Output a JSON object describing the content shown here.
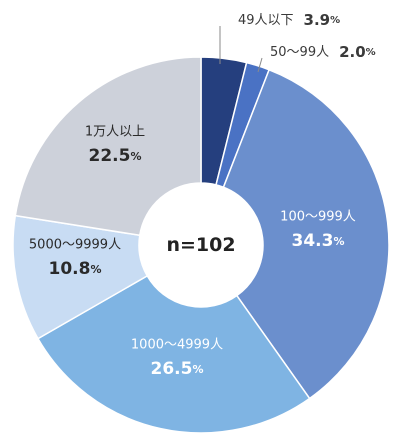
{
  "chart_data": {
    "type": "pie",
    "variant": "donut",
    "center_label": "n=102",
    "value_unit": "%",
    "segments": [
      {
        "label": "49人以下",
        "value": 3.9,
        "color": "#253f7e",
        "label_color": "#3a3a3a",
        "label_mode": "outside"
      },
      {
        "label": "50～99人",
        "value": 2.0,
        "color": "#4a72c4",
        "label_color": "#3a3a3a",
        "label_mode": "outside"
      },
      {
        "label": "100～999人",
        "value": 34.3,
        "color": "#6b8fcd",
        "label_color": "#ffffff",
        "label_mode": "inside"
      },
      {
        "label": "1000～4999人",
        "value": 26.5,
        "color": "#7fb4e3",
        "label_color": "#ffffff",
        "label_mode": "inside"
      },
      {
        "label": "5000～9999人",
        "value": 10.8,
        "color": "#c8dcf3",
        "label_color": "#2a2a2a",
        "label_mode": "inside"
      },
      {
        "label": "1万人以上",
        "value": 22.5,
        "color": "#cdd1da",
        "label_color": "#2a2a2a",
        "label_mode": "inside"
      }
    ]
  }
}
